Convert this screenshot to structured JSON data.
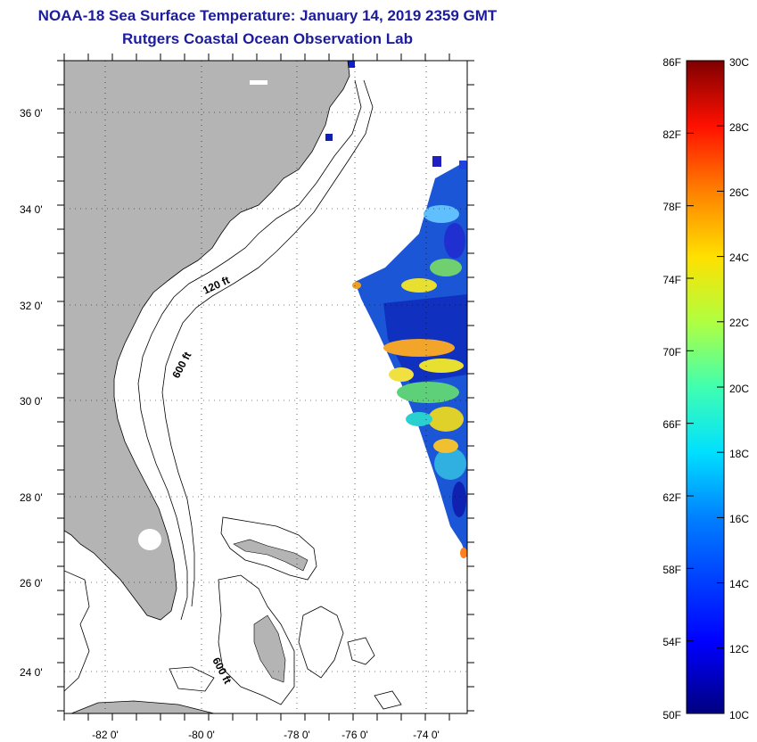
{
  "title": {
    "line1": "NOAA-18 Sea Surface Temperature:  January 14, 2019 2359 GMT",
    "line2": "Rutgers Coastal Ocean Observation Lab"
  },
  "map": {
    "lat_labels": [
      "36 0'",
      "34 0'",
      "32 0'",
      "30 0'",
      "28 0'",
      "26 0'",
      "24 0'"
    ],
    "lon_labels": [
      "-82 0'",
      "-80 0'",
      "-78 0'",
      "-76 0'",
      "-74 0'"
    ],
    "contour_labels": [
      "120 ft",
      "600 ft",
      "600 ft"
    ],
    "land_color": "#b4b4b4"
  },
  "colorbar": {
    "fahrenheit": [
      "86F",
      "82F",
      "78F",
      "74F",
      "70F",
      "66F",
      "62F",
      "58F",
      "54F",
      "50F"
    ],
    "celsius": [
      "30C",
      "28C",
      "26C",
      "24C",
      "22C",
      "20C",
      "18C",
      "16C",
      "14C",
      "12C",
      "10C"
    ]
  }
}
